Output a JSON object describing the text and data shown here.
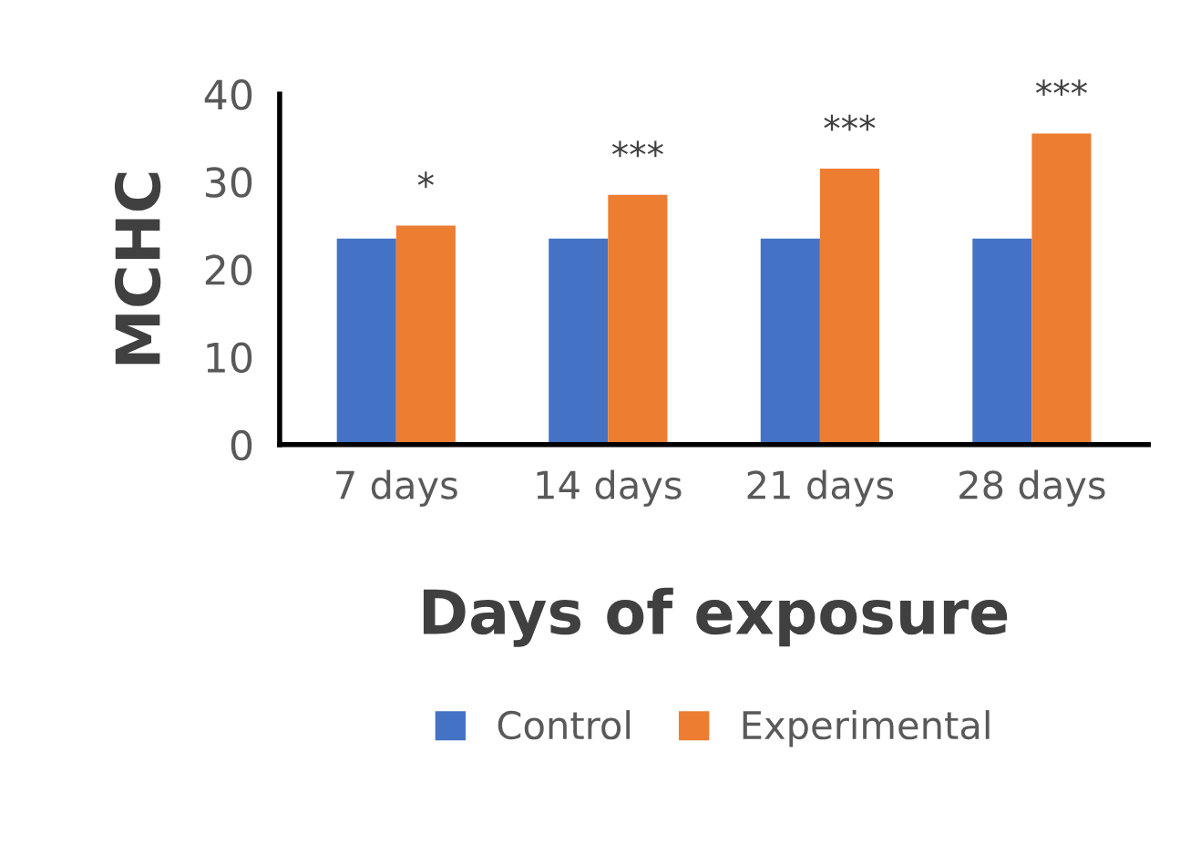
{
  "chart_data": {
    "type": "bar",
    "xlabel": "Days of exposure",
    "ylabel": "MCHC",
    "categories": [
      "7 days",
      "14 days",
      "21 days",
      "28 days"
    ],
    "series": [
      {
        "name": "Control",
        "color": "#4472c4",
        "values": [
          23.5,
          23.5,
          23.5,
          23.5
        ]
      },
      {
        "name": "Experimental",
        "color": "#ed7d31",
        "values": [
          25,
          28.5,
          31.5,
          35.5
        ]
      }
    ],
    "ylim": [
      0,
      40
    ],
    "yticks": [
      0,
      10,
      20,
      30,
      40
    ],
    "grid": false,
    "legend": "bottom",
    "annotations": [
      "*",
      "***",
      "***",
      "***"
    ]
  }
}
